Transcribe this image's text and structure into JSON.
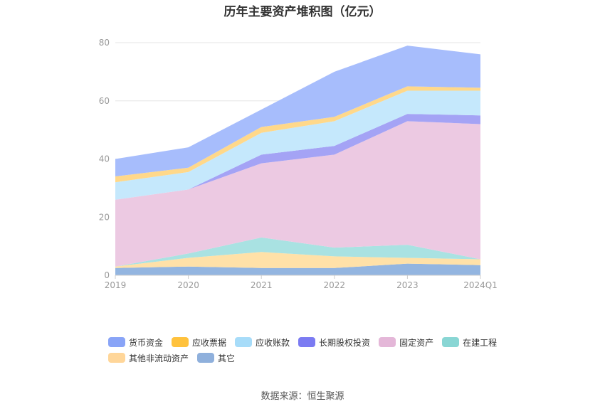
{
  "title": "历年主要资产堆积图（亿元）",
  "source": "数据来源：恒生聚源",
  "chart_data": {
    "type": "area",
    "stacked": true,
    "title": "历年主要资产堆积图（亿元）",
    "categories": [
      "2019",
      "2020",
      "2021",
      "2022",
      "2023",
      "2024Q1"
    ],
    "ylim": [
      0,
      80
    ],
    "yticks": [
      0,
      20,
      40,
      60,
      80
    ],
    "grid": true,
    "legend_position": "bottom",
    "series": [
      {
        "name": "其它",
        "color": "#93b5e0",
        "values": [
          2.5,
          3.0,
          2.5,
          2.5,
          4.0,
          3.5
        ]
      },
      {
        "name": "其他非流动资产",
        "color": "#ffe1a8",
        "values": [
          0.5,
          3.0,
          5.5,
          4.0,
          2.0,
          2.0
        ]
      },
      {
        "name": "在建工程",
        "color": "#a9e2e2",
        "values": [
          0.0,
          1.5,
          5.0,
          3.0,
          4.5,
          0.0
        ]
      },
      {
        "name": "固定资产",
        "color": "#ecc9e2",
        "values": [
          23.0,
          22.0,
          25.5,
          32.0,
          42.5,
          46.5
        ]
      },
      {
        "name": "长期股权投资",
        "color": "#a4a3f5",
        "values": [
          0.0,
          0.0,
          3.0,
          3.0,
          2.5,
          3.0
        ]
      },
      {
        "name": "应收账款",
        "color": "#c5e8fc",
        "values": [
          6.0,
          6.0,
          7.5,
          8.5,
          8.0,
          8.5
        ]
      },
      {
        "name": "应收票据",
        "color": "#ffd88a",
        "values": [
          2.0,
          1.5,
          2.0,
          1.5,
          1.5,
          1.0
        ]
      },
      {
        "name": "货币资金",
        "color": "#a7bdfc",
        "values": [
          6.0,
          7.0,
          6.0,
          15.5,
          14.0,
          11.5
        ]
      }
    ]
  },
  "legend": [
    {
      "name": "货币资金",
      "color": "#89a4f7"
    },
    {
      "name": "应收票据",
      "color": "#ffc23d"
    },
    {
      "name": "应收账款",
      "color": "#a7dcf9"
    },
    {
      "name": "长期股权投资",
      "color": "#7b7bf2"
    },
    {
      "name": "固定资产",
      "color": "#e4b7d8"
    },
    {
      "name": "在建工程",
      "color": "#89d6d4"
    },
    {
      "name": "其他非流动资产",
      "color": "#ffd699"
    },
    {
      "name": "其它",
      "color": "#8fb0dc"
    }
  ]
}
